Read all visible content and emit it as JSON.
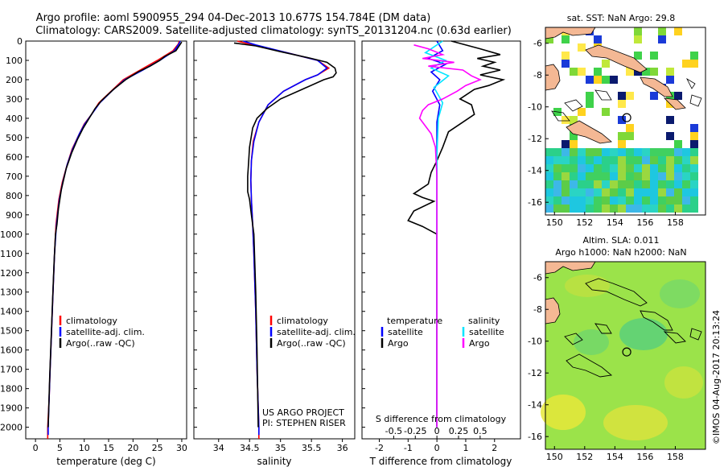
{
  "header": {
    "line1": "Argo profile: aoml 5900955_294 04-Dec-2013 10.677S 154.784E (DM data)",
    "line2": "Climatology: CARS2009. Satellite-adjusted climatology: synTS_20131204.nc (0.63d earlier)"
  },
  "colors": {
    "climatology": "#ff0000",
    "satellite": "#0000ff",
    "argo": "#000000",
    "sal_satellite": "#00e5ff",
    "sal_argo": "#ff00ff",
    "land": "#f4b894"
  },
  "depth_axis": {
    "ylim": [
      0,
      2060
    ],
    "ticks": [
      0,
      100,
      200,
      300,
      400,
      500,
      600,
      700,
      800,
      900,
      1000,
      1100,
      1200,
      1300,
      1400,
      1500,
      1600,
      1700,
      1800,
      1900,
      2000
    ]
  },
  "chart_data": [
    {
      "type": "line",
      "id": "temperature",
      "xlabel": "temperature (deg C)",
      "xlim": [
        -2,
        31
      ],
      "xticks": [
        0,
        5,
        10,
        15,
        20,
        25,
        30
      ],
      "legend": [
        "climatology",
        "satellite-adj. clim.",
        "Argo(..raw -QC)"
      ],
      "series": [
        {
          "name": "climatology",
          "color": "#ff0000",
          "points": [
            [
              29.5,
              0
            ],
            [
              29.3,
              15
            ],
            [
              28.2,
              50
            ],
            [
              25,
              100
            ],
            [
              21.5,
              150
            ],
            [
              18,
              200
            ],
            [
              15.5,
              260
            ],
            [
              13,
              320
            ],
            [
              11.5,
              380
            ],
            [
              10,
              430
            ],
            [
              9,
              480
            ],
            [
              7.5,
              560
            ],
            [
              6.5,
              640
            ],
            [
              5.5,
              730
            ],
            [
              4.8,
              820
            ],
            [
              4.2,
              950
            ],
            [
              3.9,
              1100
            ],
            [
              3.6,
              1300
            ],
            [
              3.3,
              1500
            ],
            [
              3,
              1700
            ],
            [
              2.8,
              1850
            ],
            [
              2.5,
              2000
            ],
            [
              2.5,
              2060
            ]
          ]
        },
        {
          "name": "satellite-adj. clim.",
          "color": "#0000ff",
          "points": [
            [
              29.7,
              0
            ],
            [
              29.4,
              15
            ],
            [
              28.5,
              50
            ],
            [
              25.5,
              100
            ],
            [
              22,
              150
            ],
            [
              18.3,
              200
            ],
            [
              15.6,
              260
            ],
            [
              13.2,
              320
            ],
            [
              11.5,
              380
            ],
            [
              10.1,
              430
            ],
            [
              9,
              480
            ],
            [
              7.6,
              560
            ],
            [
              6.5,
              640
            ],
            [
              5.6,
              730
            ],
            [
              4.9,
              820
            ],
            [
              4.3,
              950
            ],
            [
              3.9,
              1100
            ],
            [
              3.6,
              1300
            ],
            [
              3.3,
              1500
            ],
            [
              3,
              1700
            ],
            [
              2.8,
              1850
            ],
            [
              2.6,
              2000
            ],
            [
              2.6,
              2040
            ]
          ]
        },
        {
          "name": "Argo(..raw -QC)",
          "color": "#000000",
          "points": [
            [
              30,
              5
            ],
            [
              29.6,
              20
            ],
            [
              28.8,
              50
            ],
            [
              26.5,
              80
            ],
            [
              25.5,
              100
            ],
            [
              23.5,
              130
            ],
            [
              21,
              160
            ],
            [
              18.5,
              200
            ],
            [
              16,
              250
            ],
            [
              13.5,
              310
            ],
            [
              12.2,
              350
            ],
            [
              11,
              400
            ],
            [
              9.8,
              450
            ],
            [
              8.6,
              510
            ],
            [
              7.4,
              580
            ],
            [
              6.3,
              660
            ],
            [
              5.3,
              770
            ],
            [
              4.7,
              870
            ],
            [
              4.4,
              950
            ],
            [
              4.1,
              1000
            ],
            [
              3.8,
              1150
            ],
            [
              3.5,
              1350
            ],
            [
              3.2,
              1550
            ],
            [
              2.9,
              1750
            ],
            [
              2.6,
              2000
            ]
          ]
        }
      ]
    },
    {
      "type": "line",
      "id": "salinity",
      "xlabel": "salinity",
      "xlim": [
        33.6,
        36.2
      ],
      "xticks": [
        34,
        34.5,
        35,
        35.5,
        36
      ],
      "legend": [
        "climatology",
        "satellite-adj. clim.",
        "Argo(..raw -QC)"
      ],
      "annotation": [
        "US ARGO PROJECT",
        "PI: STEPHEN RISER"
      ],
      "series": [
        {
          "name": "climatology",
          "color": "#ff0000",
          "points": [
            [
              34.3,
              0
            ],
            [
              34.55,
              20
            ],
            [
              35.1,
              60
            ],
            [
              35.6,
              100
            ],
            [
              35.78,
              140
            ],
            [
              35.6,
              175
            ],
            [
              35.4,
              200
            ],
            [
              35.05,
              260
            ],
            [
              34.8,
              330
            ],
            [
              34.65,
              420
            ],
            [
              34.56,
              520
            ],
            [
              34.53,
              620
            ],
            [
              34.52,
              720
            ],
            [
              34.53,
              820
            ],
            [
              34.55,
              950
            ],
            [
              34.57,
              1100
            ],
            [
              34.6,
              1400
            ],
            [
              34.62,
              1700
            ],
            [
              34.65,
              2000
            ],
            [
              34.65,
              2060
            ]
          ]
        },
        {
          "name": "satellite-adj. clim.",
          "color": "#0000ff",
          "points": [
            [
              34.4,
              0
            ],
            [
              34.6,
              20
            ],
            [
              35.1,
              60
            ],
            [
              35.6,
              100
            ],
            [
              35.75,
              140
            ],
            [
              35.6,
              175
            ],
            [
              35.4,
              200
            ],
            [
              35.05,
              260
            ],
            [
              34.8,
              330
            ],
            [
              34.65,
              420
            ],
            [
              34.57,
              520
            ],
            [
              34.53,
              620
            ],
            [
              34.52,
              720
            ],
            [
              34.53,
              820
            ],
            [
              34.55,
              950
            ],
            [
              34.57,
              1100
            ],
            [
              34.6,
              1400
            ],
            [
              34.62,
              1700
            ],
            [
              34.65,
              2000
            ],
            [
              34.65,
              2040
            ]
          ]
        },
        {
          "name": "Argo(..raw -QC)",
          "color": "#000000",
          "points": [
            [
              34.25,
              10
            ],
            [
              34.6,
              25
            ],
            [
              35,
              55
            ],
            [
              35.5,
              90
            ],
            [
              35.75,
              110
            ],
            [
              35.88,
              140
            ],
            [
              35.9,
              165
            ],
            [
              35.85,
              185
            ],
            [
              35.7,
              200
            ],
            [
              35.35,
              250
            ],
            [
              35.0,
              300
            ],
            [
              34.78,
              350
            ],
            [
              34.62,
              400
            ],
            [
              34.55,
              450
            ],
            [
              34.5,
              550
            ],
            [
              34.48,
              650
            ],
            [
              34.47,
              700
            ],
            [
              34.47,
              780
            ],
            [
              34.5,
              820
            ],
            [
              34.53,
              900
            ],
            [
              34.57,
              1000
            ],
            [
              34.6,
              1300
            ],
            [
              34.62,
              1600
            ],
            [
              34.64,
              2000
            ]
          ]
        }
      ]
    },
    {
      "type": "line",
      "id": "difference",
      "xlabel": "T difference from climatology",
      "xlabel2": "S difference from climatology",
      "xlim": [
        -2.6,
        2.9
      ],
      "xticks": [
        -2,
        -1,
        0,
        1,
        2
      ],
      "xticks2": [
        {
          "at": -1.5,
          "label": "-0.5"
        },
        {
          "at": -0.75,
          "label": "-0.25"
        },
        {
          "at": 0,
          "label": "0"
        },
        {
          "at": 0.75,
          "label": "0.25"
        },
        {
          "at": 1.5,
          "label": "0.5"
        }
      ],
      "legend_headers": [
        "temperature",
        "salinity"
      ],
      "legend": [
        "satellite",
        "Argo",
        "satellite",
        "Argo"
      ],
      "series": [
        {
          "name": "T satellite",
          "color": "#0000ff",
          "points": [
            [
              0,
              0
            ],
            [
              0.2,
              50
            ],
            [
              -0.3,
              90
            ],
            [
              0.3,
              120
            ],
            [
              -0.2,
              160
            ],
            [
              0.1,
              200
            ],
            [
              -0.15,
              260
            ],
            [
              0.1,
              330
            ],
            [
              0,
              420
            ],
            [
              0,
              600
            ],
            [
              0,
              1000
            ],
            [
              0,
              1500
            ],
            [
              0,
              2000
            ]
          ]
        },
        {
          "name": "T Argo",
          "color": "#000000",
          "points": [
            [
              0.5,
              0
            ],
            [
              1.5,
              40
            ],
            [
              2.2,
              70
            ],
            [
              1.4,
              90
            ],
            [
              2,
              110
            ],
            [
              1.6,
              130
            ],
            [
              2.2,
              150
            ],
            [
              1.5,
              175
            ],
            [
              2.3,
              200
            ],
            [
              1.8,
              230
            ],
            [
              1.3,
              250
            ],
            [
              0.8,
              300
            ],
            [
              1.2,
              330
            ],
            [
              1.3,
              380
            ],
            [
              0.9,
              420
            ],
            [
              0.4,
              470
            ],
            [
              0.2,
              550
            ],
            [
              0,
              620
            ],
            [
              -0.2,
              680
            ],
            [
              -0.3,
              740
            ],
            [
              -0.8,
              790
            ],
            [
              -0.5,
              810
            ],
            [
              -0.1,
              830
            ],
            [
              -0.8,
              880
            ],
            [
              -1,
              930
            ],
            [
              -0.5,
              960
            ],
            [
              0,
              1000
            ],
            [
              0,
              1200
            ],
            [
              0,
              1500
            ],
            [
              0,
              2000
            ]
          ]
        },
        {
          "name": "S satellite",
          "color": "#00e5ff",
          "points": [
            [
              0.2,
              0
            ],
            [
              -0.4,
              60
            ],
            [
              0.3,
              100
            ],
            [
              -0.2,
              140
            ],
            [
              0.4,
              180
            ],
            [
              -0.1,
              240
            ],
            [
              0.2,
              320
            ],
            [
              0.05,
              400
            ],
            [
              0,
              600
            ],
            [
              0,
              1000
            ],
            [
              0,
              1500
            ],
            [
              0,
              2000
            ]
          ]
        },
        {
          "name": "S Argo",
          "color": "#ff00ff",
          "points": [
            [
              -0.8,
              20
            ],
            [
              -0.3,
              40
            ],
            [
              0.2,
              70
            ],
            [
              -0.5,
              90
            ],
            [
              0.6,
              110
            ],
            [
              -0.3,
              130
            ],
            [
              0.9,
              150
            ],
            [
              1.2,
              180
            ],
            [
              1.5,
              200
            ],
            [
              1.0,
              230
            ],
            [
              0.7,
              260
            ],
            [
              0.2,
              300
            ],
            [
              -0.3,
              330
            ],
            [
              -0.5,
              360
            ],
            [
              -0.6,
              400
            ],
            [
              -0.4,
              440
            ],
            [
              -0.2,
              480
            ],
            [
              -0.05,
              550
            ],
            [
              0,
              700
            ],
            [
              0,
              1000
            ],
            [
              0,
              1500
            ],
            [
              0,
              2000
            ]
          ]
        }
      ]
    }
  ],
  "sst_map": {
    "title": "sat. SST: NaN Argo: 29.8",
    "xticks": [
      150,
      152,
      154,
      156,
      158
    ],
    "yticks": [
      -6,
      -8,
      -10,
      -12,
      -14,
      -16
    ],
    "xlim": [
      149.4,
      160
    ],
    "ylim": [
      -16.8,
      -5
    ]
  },
  "sla_map": {
    "title1": "Altim. SLA: 0.011",
    "title2": "Argo h1000: NaN h2000: NaN",
    "xticks": [
      150,
      152,
      154,
      156,
      158
    ],
    "yticks": [
      -6,
      -8,
      -10,
      -12,
      -14,
      -16
    ],
    "xlim": [
      149.4,
      160
    ],
    "ylim": [
      -16.8,
      -5
    ]
  },
  "argo_position": {
    "lon": 154.784,
    "lat": -10.677
  },
  "watermark": "©IMOS 04-Aug-2017 20:13:24"
}
